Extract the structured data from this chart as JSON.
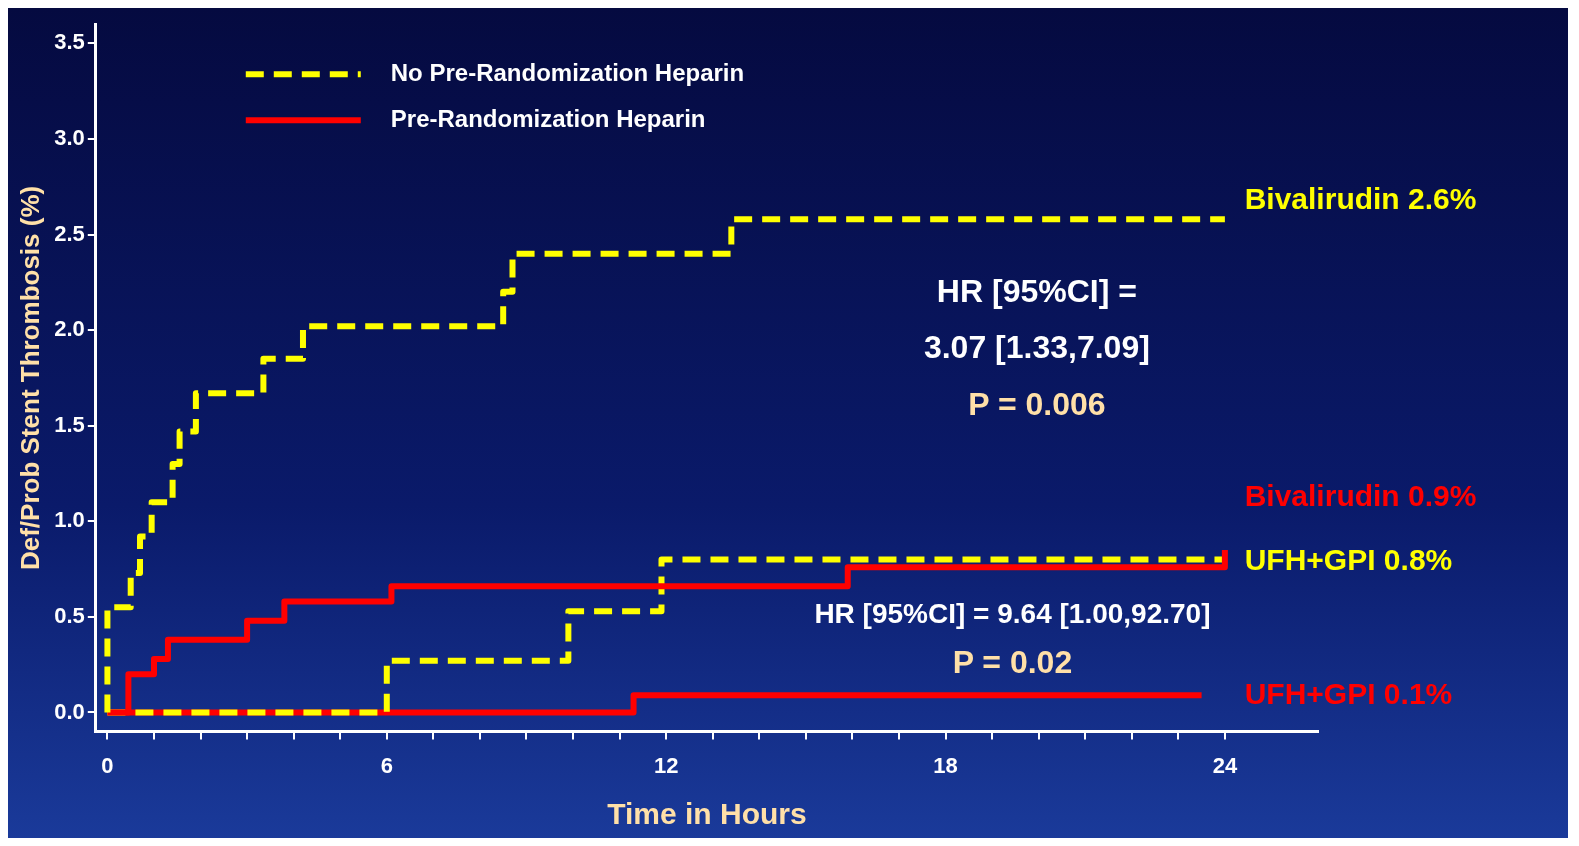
{
  "chart_data": {
    "type": "step",
    "ylabel": "Def/Prob Stent Thrombosis (%)",
    "xlabel": "Time in Hours",
    "xlim": [
      -0.25,
      26
    ],
    "ylim": [
      -0.1,
      3.6
    ],
    "xticks": [
      0,
      {
        "value": 1,
        "label": null
      },
      {
        "value": 2,
        "label": null
      },
      {
        "value": 3,
        "label": null
      },
      {
        "value": 4,
        "label": null
      },
      {
        "value": 5,
        "label": null
      },
      6,
      {
        "value": 7,
        "label": null
      },
      {
        "value": 8,
        "label": null
      },
      {
        "value": 9,
        "label": null
      },
      {
        "value": 10,
        "label": null
      },
      {
        "value": 11,
        "label": null
      },
      12,
      {
        "value": 13,
        "label": null
      },
      {
        "value": 14,
        "label": null
      },
      {
        "value": 15,
        "label": null
      },
      {
        "value": 16,
        "label": null
      },
      {
        "value": 17,
        "label": null
      },
      18,
      {
        "value": 19,
        "label": null
      },
      {
        "value": 20,
        "label": null
      },
      {
        "value": 21,
        "label": null
      },
      {
        "value": 22,
        "label": null
      },
      {
        "value": 23,
        "label": null
      },
      24
    ],
    "yticks": [
      {
        "value": 0,
        "label": "0.0"
      },
      0.5,
      {
        "value": 1,
        "label": "1.0"
      },
      1.5,
      {
        "value": 2,
        "label": "2.0"
      },
      2.5,
      {
        "value": 3,
        "label": "3.0"
      },
      3.5
    ],
    "legend": "top left",
    "grid": false,
    "series": [
      {
        "name": "No Pre-Randomization Heparin",
        "color": "#ffff00",
        "line_style": "dashed",
        "x": [
          0,
          0,
          0.5,
          0.7,
          0.95,
          1.4,
          1.55,
          1.9,
          3.35,
          4.2,
          8.5,
          8.7,
          13.4,
          24
        ],
        "values": [
          0,
          0.55,
          0.73,
          0.92,
          1.1,
          1.3,
          1.47,
          1.67,
          1.85,
          2.02,
          2.2,
          2.4,
          2.58,
          2.58
        ]
      },
      {
        "name": "Pre-Randomization Heparin",
        "color": "#ff0000",
        "line_style": "solid",
        "x": [
          0,
          0.45,
          1.0,
          1.3,
          3.0,
          3.8,
          6.1,
          15.9,
          24,
          24
        ],
        "values": [
          0,
          0.2,
          0.28,
          0.38,
          0.48,
          0.58,
          0.66,
          0.76,
          0.76,
          0.85
        ]
      },
      {
        "color": "#ffff00",
        "line_style": "dashed",
        "x": [
          0,
          6.0,
          9.9,
          11.9,
          24
        ],
        "values": [
          0,
          0.27,
          0.53,
          0.8,
          0.8
        ]
      },
      {
        "color": "#ff0000",
        "line_style": "solid",
        "x": [
          0,
          11.3,
          23.5
        ],
        "values": [
          0,
          0.09,
          0.09
        ]
      }
    ],
    "annotations": [
      "Bivalirudin 2.6%",
      "Bivalirudin 0.9%",
      "UFH+GPI 0.8%",
      "UFH+GPI 0.1%",
      "HR [95%CI] =",
      "3.07 [1.33,7.09]",
      "P = 0.006",
      "HR [95%CI] = 9.64 [1.00,92.70]",
      "P = 0.02"
    ]
  }
}
